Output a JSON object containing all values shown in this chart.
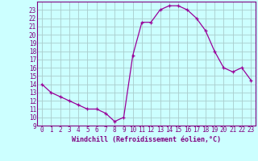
{
  "x": [
    0,
    1,
    2,
    3,
    4,
    5,
    6,
    7,
    8,
    9,
    10,
    11,
    12,
    13,
    14,
    15,
    16,
    17,
    18,
    19,
    20,
    21,
    22,
    23
  ],
  "y": [
    14,
    13,
    12.5,
    12,
    11.5,
    11,
    11,
    10.5,
    9.5,
    10,
    17.5,
    21.5,
    21.5,
    23,
    23.5,
    23.5,
    23,
    22,
    20.5,
    18,
    16,
    15.5,
    16,
    14.5
  ],
  "line_color": "#990099",
  "marker": "+",
  "marker_size": 3,
  "bg_color": "#ccffff",
  "grid_color": "#aacccc",
  "xlabel": "Windchill (Refroidissement éolien,°C)",
  "xlabel_color": "#800080",
  "tick_color": "#800080",
  "xlim": [
    -0.5,
    23.5
  ],
  "ylim": [
    9,
    24
  ],
  "yticks": [
    9,
    10,
    11,
    12,
    13,
    14,
    15,
    16,
    17,
    18,
    19,
    20,
    21,
    22,
    23
  ],
  "xticks": [
    0,
    1,
    2,
    3,
    4,
    5,
    6,
    7,
    8,
    9,
    10,
    11,
    12,
    13,
    14,
    15,
    16,
    17,
    18,
    19,
    20,
    21,
    22,
    23
  ],
  "font_size_ticks": 5.5,
  "font_size_xlabel": 6.0,
  "linewidth": 0.9,
  "markeredgewidth": 0.9
}
